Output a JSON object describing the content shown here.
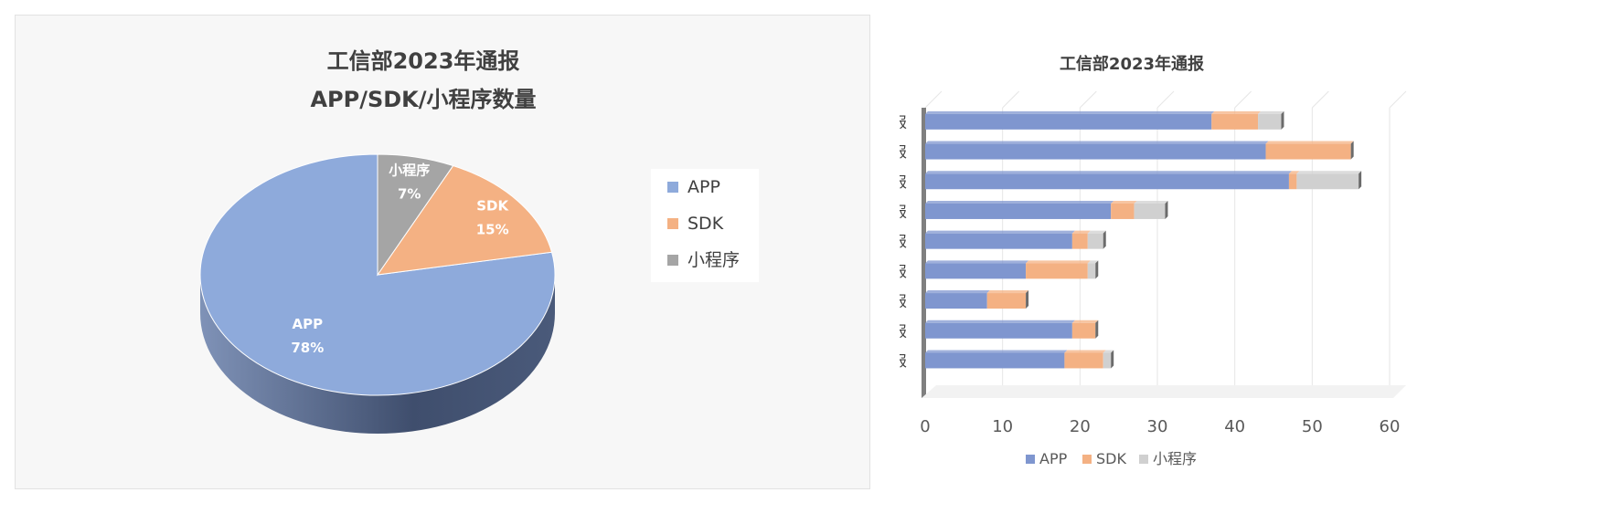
{
  "chart_data": [
    {
      "type": "pie",
      "title": "工信部2023年通报",
      "subtitle": "APP/SDK/小程序数量",
      "categories": [
        "APP",
        "SDK",
        "小程序"
      ],
      "values": [
        78,
        15,
        7
      ],
      "labels": [
        "APP",
        "SDK",
        "小程序"
      ],
      "value_labels": [
        "78%",
        "15%",
        "7%"
      ],
      "colors": [
        "#8eaadb",
        "#f4b183",
        "#a5a5a5"
      ],
      "legend": [
        "APP",
        "SDK",
        "小程序"
      ],
      "legend_position": "right",
      "style": "3d"
    },
    {
      "type": "bar",
      "orientation": "horizontal",
      "stacked": true,
      "title": "工信部2023年通报",
      "categories": [
        "第一批通报",
        "第二批通报",
        "第三批通报",
        "第四批通报",
        "第五批通报",
        "第六批通报",
        "第七批通报",
        "第八批通报",
        "第九批通报"
      ],
      "series": [
        {
          "name": "APP",
          "color": "#7f96cf",
          "values": [
            37,
            44,
            47,
            24,
            19,
            13,
            8,
            19,
            18
          ]
        },
        {
          "name": "SDK",
          "color": "#f4b183",
          "values": [
            6,
            11,
            1,
            3,
            2,
            8,
            5,
            3,
            5
          ]
        },
        {
          "name": "小程序",
          "color": "#d0d0d0",
          "values": [
            3,
            0,
            8,
            4,
            2,
            1,
            0,
            0,
            1
          ]
        }
      ],
      "xlim": [
        0,
        60
      ],
      "xticks": [
        "0",
        "10",
        "20",
        "30",
        "40",
        "50",
        "60"
      ],
      "grid": true,
      "legend_position": "bottom"
    }
  ]
}
